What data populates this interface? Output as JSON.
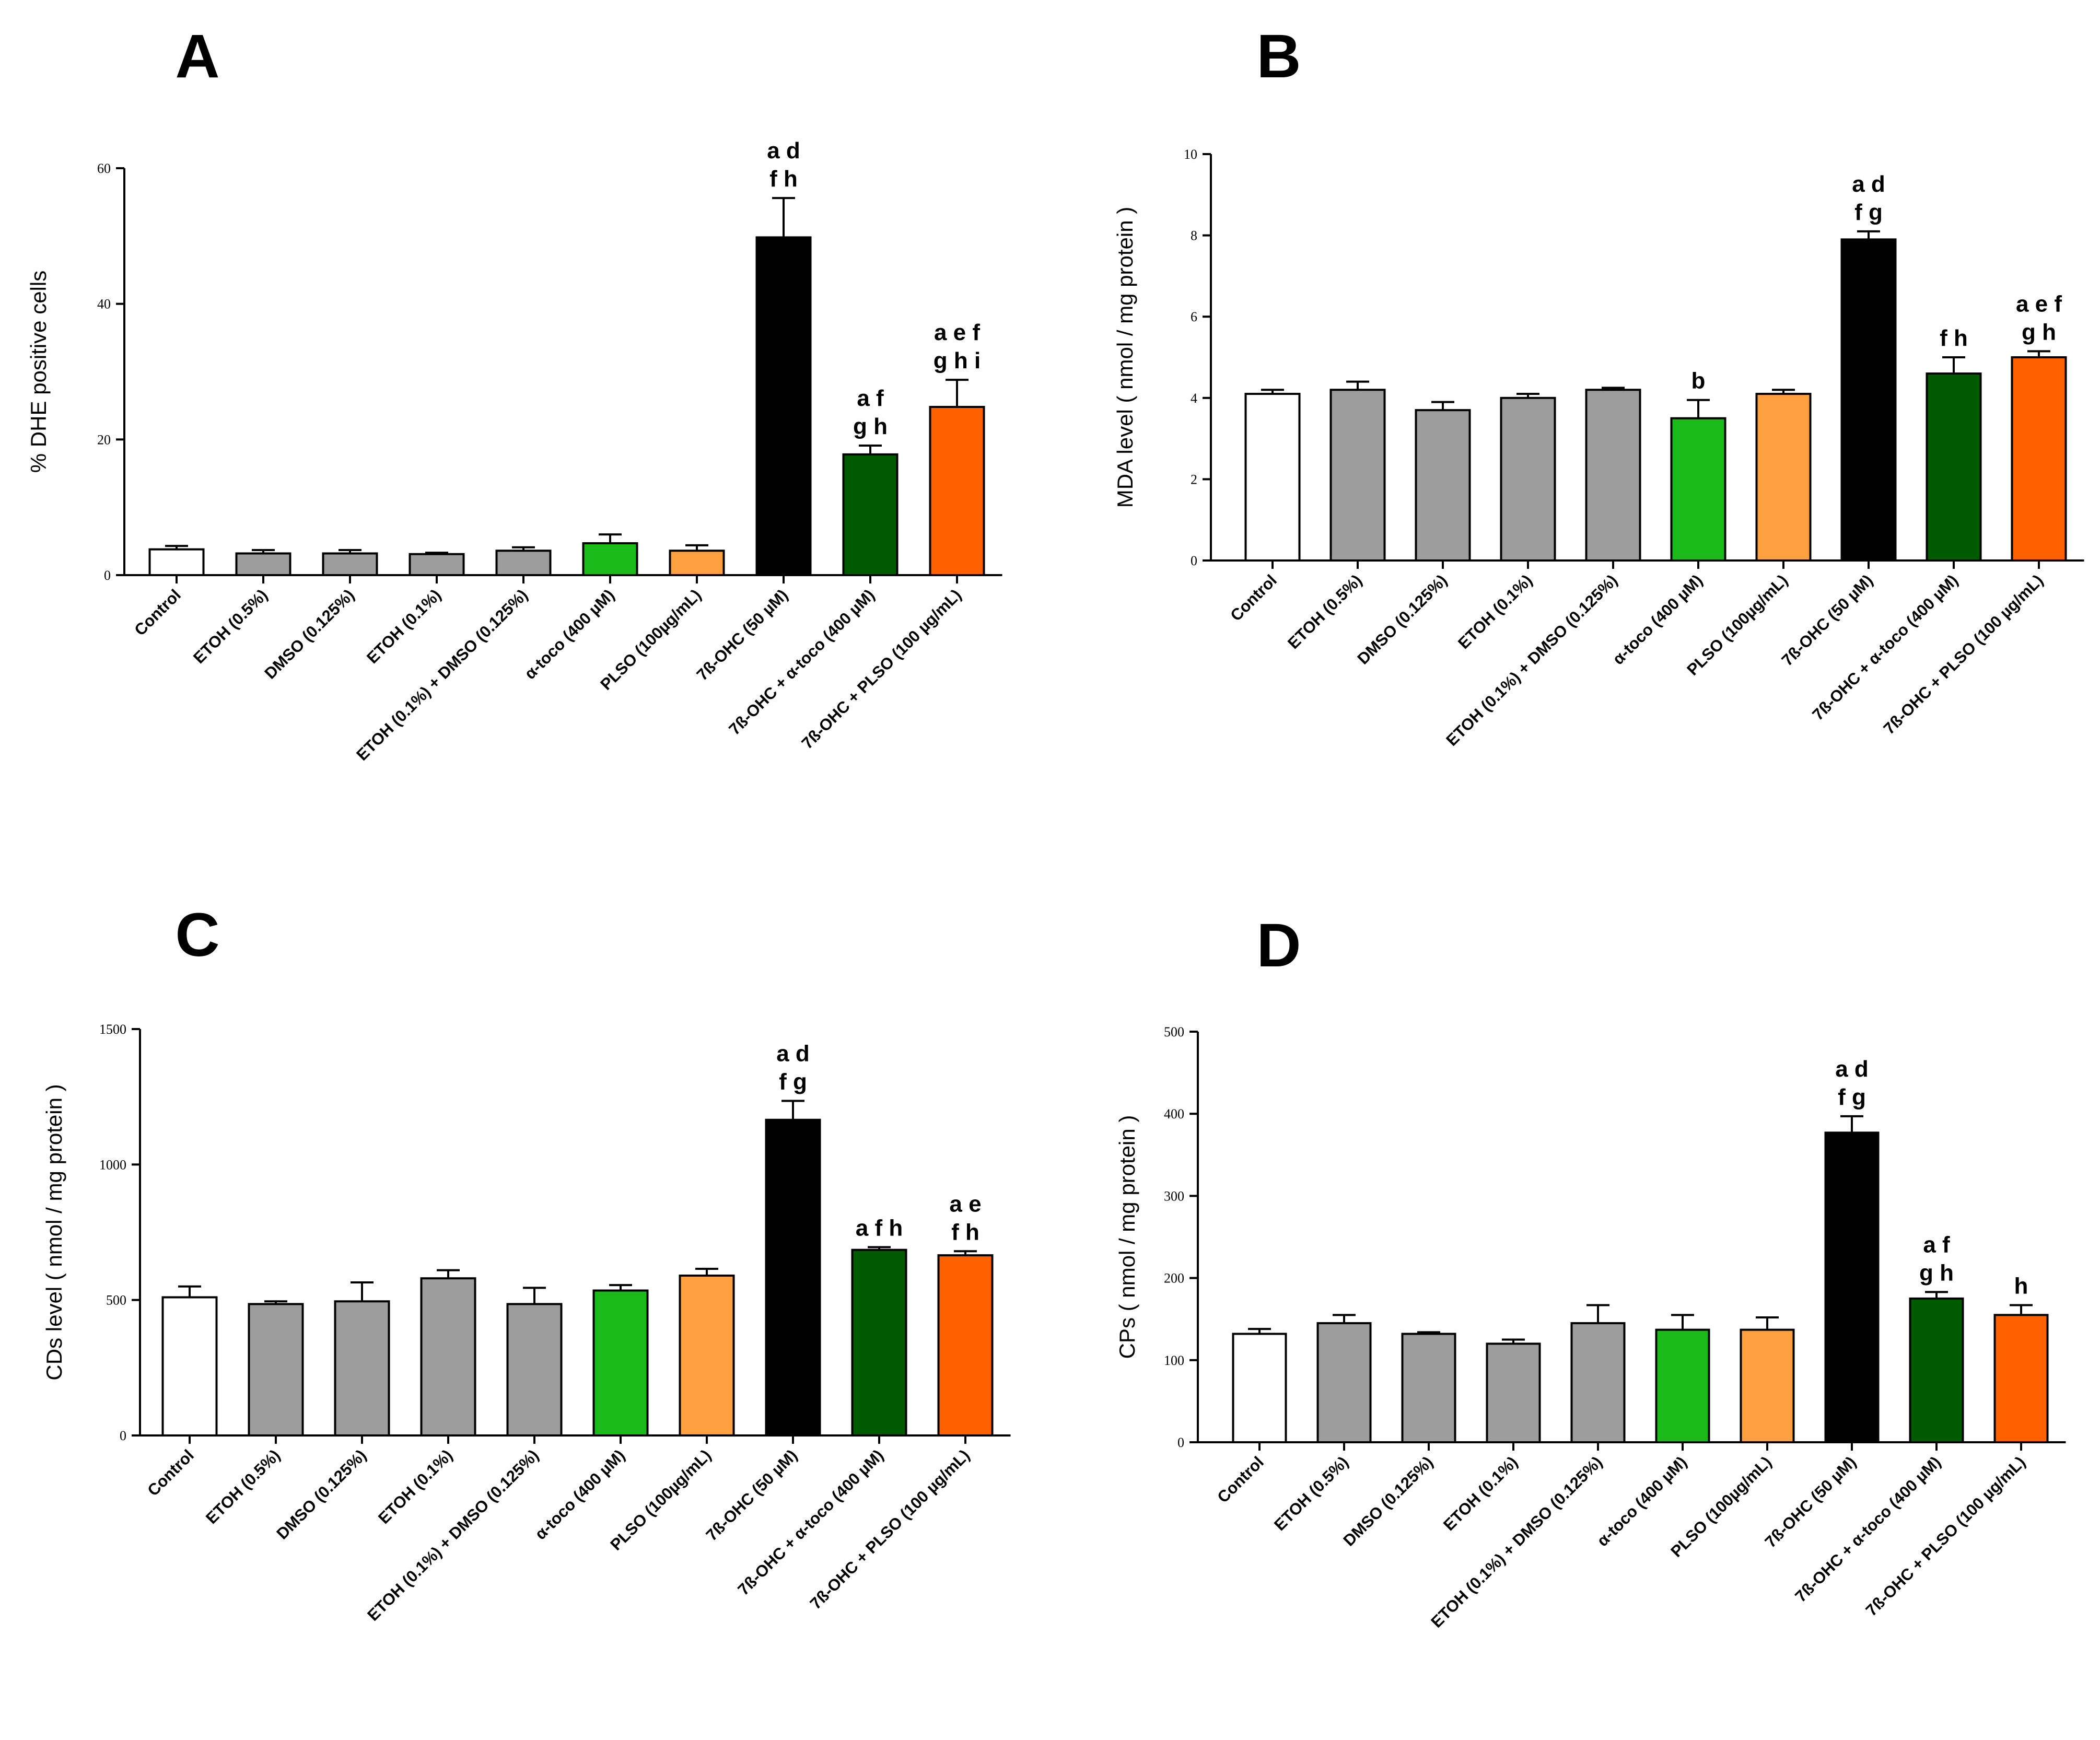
{
  "categories": [
    "Control",
    "ETOH (0.5%)",
    "DMSO (0.125%)",
    "ETOH (0.1%)",
    "ETOH (0.1%) + DMSO (0.125%)",
    "α-toco (400 µM)",
    "PLSO (100µg/mL)",
    "7ß-OHC (50 µM)",
    "7ß-OHC + α-toco (400 µM)",
    "7ß-OHC + PLSO (100 µg/mL)"
  ],
  "colors": [
    "#ffffff",
    "#9d9d9d",
    "#9d9d9d",
    "#9d9d9d",
    "#9d9d9d",
    "#1aba1a",
    "#ffa040",
    "#000000",
    "#005a00",
    "#ff6000"
  ],
  "chart_data": [
    {
      "panel": "A",
      "type": "bar",
      "ylabel": "% DHE positive cells",
      "ylim": [
        0,
        60
      ],
      "yticks": [
        0,
        20,
        40,
        60
      ],
      "values": [
        3.8,
        3.2,
        3.2,
        3.1,
        3.6,
        4.7,
        3.6,
        49.8,
        17.8,
        24.8
      ],
      "errors": [
        0.5,
        0.5,
        0.5,
        0.2,
        0.5,
        1.3,
        0.8,
        5.8,
        1.3,
        4.0
      ],
      "annotations": [
        {
          "bar": 7,
          "lines": [
            "a d",
            "f h"
          ]
        },
        {
          "bar": 8,
          "lines": [
            "a f",
            "g h"
          ]
        },
        {
          "bar": 9,
          "lines": [
            "a e f",
            "g h i"
          ]
        }
      ]
    },
    {
      "panel": "B",
      "type": "bar",
      "ylabel": "MDA level ( nmol / mg protein )",
      "ylim": [
        0,
        10
      ],
      "yticks": [
        0,
        2,
        4,
        6,
        8,
        10
      ],
      "values": [
        4.1,
        4.2,
        3.7,
        4.0,
        4.2,
        3.5,
        4.1,
        7.9,
        4.6,
        5.0
      ],
      "errors": [
        0.1,
        0.2,
        0.2,
        0.1,
        0.05,
        0.45,
        0.1,
        0.2,
        0.4,
        0.15
      ],
      "annotations": [
        {
          "bar": 5,
          "lines": [
            "b"
          ]
        },
        {
          "bar": 7,
          "lines": [
            "a d",
            "f g"
          ]
        },
        {
          "bar": 8,
          "lines": [
            "f h"
          ]
        },
        {
          "bar": 9,
          "lines": [
            "a e f",
            "g h"
          ]
        }
      ]
    },
    {
      "panel": "C",
      "type": "bar",
      "ylabel": "CDs level ( nmol / mg protein )",
      "ylim": [
        0,
        1500
      ],
      "yticks": [
        0,
        500,
        1000,
        1500
      ],
      "values": [
        510,
        485,
        495,
        580,
        485,
        535,
        590,
        1165,
        685,
        665
      ],
      "errors": [
        40,
        10,
        70,
        30,
        60,
        20,
        25,
        70,
        10,
        15
      ],
      "annotations": [
        {
          "bar": 7,
          "lines": [
            "a d",
            "f g"
          ]
        },
        {
          "bar": 8,
          "lines": [
            "a f h"
          ]
        },
        {
          "bar": 9,
          "lines": [
            "a e",
            "f h"
          ]
        }
      ]
    },
    {
      "panel": "D",
      "type": "bar",
      "ylabel": "CPs ( nmol / mg protein )",
      "ylim": [
        0,
        500
      ],
      "yticks": [
        0,
        100,
        200,
        300,
        400,
        500
      ],
      "values": [
        132,
        145,
        132,
        120,
        145,
        137,
        137,
        377,
        175,
        155
      ],
      "errors": [
        6,
        10,
        2,
        5,
        22,
        18,
        15,
        20,
        8,
        12
      ],
      "annotations": [
        {
          "bar": 7,
          "lines": [
            "a d",
            "f g"
          ]
        },
        {
          "bar": 8,
          "lines": [
            "a f",
            "g h"
          ]
        },
        {
          "bar": 9,
          "lines": [
            "h"
          ]
        }
      ]
    }
  ]
}
